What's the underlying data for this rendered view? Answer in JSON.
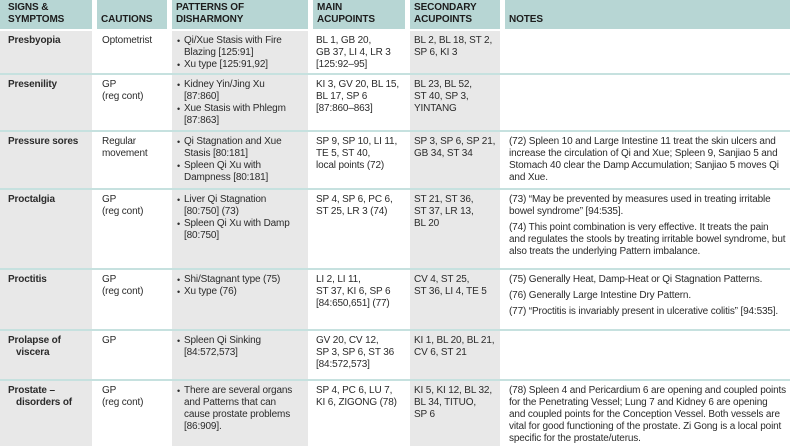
{
  "colors": {
    "header-bg": "#b7d6d4",
    "shaded-col": "#e8e8e8",
    "row-line": "#c6e1df",
    "bottom-line": "#a5d0ce",
    "text": "#2b2b2b"
  },
  "table": {
    "columns": [
      {
        "label": "SIGNS &\nSYMPTOMS"
      },
      {
        "label": "CAUTIONS"
      },
      {
        "label": "PATTERNS OF\nDISHARMONY"
      },
      {
        "label": "MAIN\nACUPOINTS"
      },
      {
        "label": "SECONDARY\nACUPOINTS"
      },
      {
        "label": "NOTES"
      }
    ],
    "rows": [
      {
        "signs": "Presbyopia",
        "cautions": "Optometrist",
        "patterns": [
          "Qi/Xue Stasis with Fire\nBlazing [125:91]",
          "Xu type [125:91,92]"
        ],
        "main": "BL 1, GB 20,\nGB 37, LI 4, LR 3\n[125:92–95]",
        "secondary": "BL 2, BL 18, ST 2,\nSP 6, KI 3",
        "notes": []
      },
      {
        "signs": "Presenility",
        "cautions": "GP\n(reg cont)",
        "patterns": [
          "Kidney Yin/Jing Xu\n[87:860]",
          "Xue Stasis with Phlegm\n[87:863]"
        ],
        "main": "KI 3, GV 20, BL 15,\nBL 17, SP 6\n[87:860–863]",
        "secondary": "BL 23, BL 52,\nST 40, SP 3,\nYINTANG",
        "notes": []
      },
      {
        "signs": "Pressure sores",
        "cautions": "Regular\nmovement",
        "patterns": [
          "Qi Stagnation and Xue\nStasis [80:181]",
          "Spleen Qi Xu with\nDampness [80:181]"
        ],
        "main": "SP 9, SP 10, LI 11,\nTE 5, ST 40,\nlocal points  (72)",
        "secondary": "SP 3, SP 6, SP 21,\nGB 34, ST 34",
        "notes": [
          "(72) Spleen 10 and Large Intestine 11 treat the skin ulcers and increase the circulation of Qi and Xue; Spleen 9, Sanjiao 5 and Stomach 40 clear the Damp Accumulation; Sanjiao 5 moves Qi and Xue."
        ]
      },
      {
        "signs": "Proctalgia",
        "cautions": "GP\n(reg cont)",
        "patterns": [
          "Liver Qi Stagnation\n[80:750] (73)",
          "Spleen Qi Xu with Damp\n[80:750]"
        ],
        "main": "SP 4, SP 6, PC 6,\nST 25, LR 3 (74)",
        "secondary": "ST 21, ST 36,\nST 37, LR 13,\nBL 20",
        "notes": [
          "(73) “May be prevented by measures used in treating irritable bowel syndrome” [94:535].",
          "(74) This point combination is very effective. It treats the pain and regulates the stools by treating irritable bowel syndrome, but also treats the underlying Pattern imbalance."
        ]
      },
      {
        "signs": "Proctitis",
        "cautions": "GP\n(reg cont)",
        "patterns": [
          "Shi/Stagnant type (75)",
          "Xu type (76)"
        ],
        "main": "LI 2, LI 11,\nST 37, KI 6, SP 6\n[84:650,651] (77)",
        "secondary": "CV 4, ST 25,\nST 36, LI 4, TE 5",
        "notes": [
          "(75) Generally Heat, Damp-Heat or Qi Stagnation Patterns.",
          "(76) Generally Large Intestine Dry Pattern.",
          "(77) “Proctitis is invariably present in ulcerative colitis” [94:535]."
        ]
      },
      {
        "signs": "Prolapse of\nviscera",
        "cautions": "GP",
        "patterns": [
          "Spleen Qi Sinking\n[84:572,573]"
        ],
        "main": "GV 20, CV 12,\nSP 3, SP 6, ST 36\n[84:572,573]",
        "secondary": "KI 1, BL 20, BL 21,\nCV 6, ST 21",
        "notes": []
      },
      {
        "signs": "Prostate –\ndisorders of",
        "cautions": "GP\n(reg cont)",
        "patterns": [
          "There are several organs\nand Patterns that can\ncause prostate problems\n[86:909]."
        ],
        "main": "SP 4, PC 6, LU 7,\nKI 6, ZIGONG (78)",
        "secondary": "KI 5, KI 12, BL 32,\nBL 34, TITUO,\nSP 6",
        "notes": [
          "(78) Spleen 4 and Pericardium 6 are opening and coupled points for the Penetrating Vessel; Lung 7 and Kidney 6 are opening and coupled points for the Conception Vessel. Both vessels are vital for good functioning of the prostate. Zi Gong is a local point specific for the prostate/uterus."
        ]
      }
    ]
  }
}
